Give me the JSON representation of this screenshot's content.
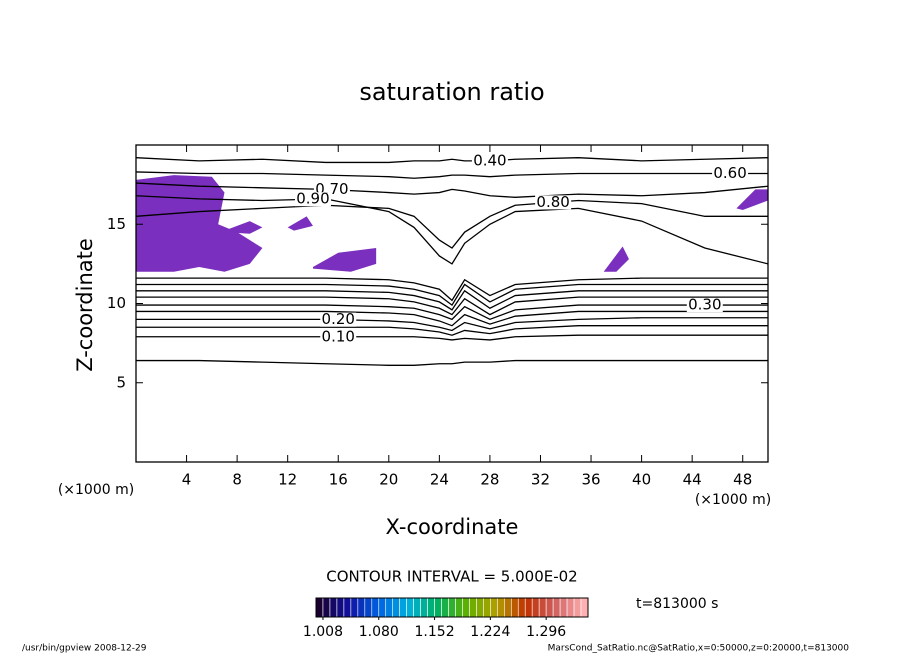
{
  "chart_data": {
    "type": "contour",
    "title": "saturation ratio",
    "x_label": "X-coordinate",
    "y_label": "Z-coordinate",
    "x_unit": "(×1000 m)",
    "y_unit": "(×1000 m)",
    "xlim": [
      0,
      50
    ],
    "ylim": [
      0,
      20
    ],
    "xticks": [
      4,
      8,
      12,
      16,
      20,
      24,
      28,
      32,
      36,
      40,
      44,
      48
    ],
    "yticks": [
      5,
      10,
      15
    ],
    "contour_interval_text": "CONTOUR INTERVAL = 5.000E-02",
    "time_text": "t=813000 s",
    "contour_x": [
      0,
      5,
      10,
      15,
      20,
      22,
      24,
      25,
      26,
      28,
      30,
      35,
      40,
      45,
      50
    ],
    "contours": [
      {
        "level": 0.05,
        "z": [
          6.4,
          6.4,
          6.3,
          6.2,
          6.1,
          6.1,
          6.2,
          6.2,
          6.3,
          6.3,
          6.4,
          6.4,
          6.4,
          6.4,
          6.4
        ]
      },
      {
        "level": 0.1,
        "label": "0.10",
        "label_x": 16,
        "z": [
          7.9,
          7.9,
          7.9,
          7.9,
          7.9,
          7.9,
          7.8,
          7.7,
          7.8,
          7.7,
          7.9,
          8.0,
          8.0,
          8.0,
          8.0
        ]
      },
      {
        "level": 0.15,
        "z": [
          8.5,
          8.5,
          8.5,
          8.5,
          8.5,
          8.4,
          8.2,
          8.0,
          8.3,
          8.1,
          8.4,
          8.6,
          8.6,
          8.6,
          8.6
        ]
      },
      {
        "level": 0.2,
        "label": "0.20",
        "label_x": 16,
        "z": [
          9.0,
          9.0,
          9.0,
          9.0,
          8.9,
          8.8,
          8.5,
          8.3,
          8.8,
          8.4,
          8.8,
          9.0,
          9.1,
          9.1,
          9.1
        ]
      },
      {
        "level": 0.25,
        "z": [
          9.5,
          9.5,
          9.5,
          9.5,
          9.4,
          9.3,
          8.9,
          8.6,
          9.3,
          8.7,
          9.2,
          9.5,
          9.5,
          9.5,
          9.5
        ]
      },
      {
        "level": 0.3,
        "label": "0.30",
        "label_x": 45,
        "z": [
          9.9,
          9.9,
          9.9,
          9.9,
          9.8,
          9.7,
          9.3,
          9.0,
          9.8,
          9.0,
          9.6,
          9.9,
          9.9,
          9.9,
          9.9
        ]
      },
      {
        "level": 0.35,
        "z": [
          10.4,
          10.4,
          10.4,
          10.4,
          10.3,
          10.1,
          9.7,
          9.3,
          10.3,
          9.3,
          10.1,
          10.4,
          10.4,
          10.4,
          10.4
        ]
      },
      {
        "level": 0.4,
        "z": [
          10.8,
          10.8,
          10.8,
          10.8,
          10.7,
          10.5,
          10.1,
          9.6,
          10.8,
          9.7,
          10.5,
          10.8,
          10.8,
          10.8,
          10.8
        ]
      },
      {
        "level": 0.45,
        "z": [
          11.2,
          11.2,
          11.2,
          11.2,
          11.1,
          10.9,
          10.5,
          9.9,
          11.2,
          10.1,
          10.9,
          11.2,
          11.2,
          11.2,
          11.2
        ]
      },
      {
        "level": 0.5,
        "z": [
          11.6,
          11.6,
          11.6,
          11.6,
          11.5,
          11.3,
          10.9,
          10.2,
          11.5,
          10.5,
          11.2,
          11.5,
          11.6,
          11.6,
          11.6
        ]
      },
      {
        "level": 0.4,
        "label": "0.40",
        "label_x": 28,
        "z": [
          19.2,
          19.0,
          19.1,
          18.9,
          18.9,
          19.0,
          19.0,
          19.1,
          19.0,
          19.0,
          19.1,
          19.2,
          19.0,
          19.1,
          19.2
        ]
      },
      {
        "level": 0.6,
        "label": "0.60",
        "label_x": 47,
        "z": [
          18.3,
          18.2,
          18.2,
          18.1,
          18.0,
          17.9,
          18.0,
          18.1,
          18.1,
          18.0,
          18.1,
          18.2,
          18.2,
          18.2,
          18.2
        ]
      },
      {
        "level": 0.7,
        "label": "0.70",
        "label_x": 15.5,
        "z": [
          17.6,
          17.4,
          17.3,
          17.2,
          17.0,
          16.9,
          17.0,
          17.2,
          17.1,
          16.8,
          16.7,
          16.9,
          16.8,
          17.0,
          17.4
        ]
      },
      {
        "level": 0.8,
        "label": "0.80",
        "label_x": 33,
        "z": [
          15.5,
          15.8,
          16.0,
          16.2,
          16.0,
          15.5,
          14.0,
          13.5,
          14.5,
          15.5,
          16.2,
          16.5,
          16.3,
          15.5,
          15.5
        ]
      },
      {
        "level": 0.9,
        "label": "0.90",
        "label_x": 14,
        "z": [
          16.8,
          16.6,
          16.5,
          16.6,
          15.8,
          14.8,
          13.0,
          12.5,
          13.8,
          15.0,
          15.8,
          16.0,
          15.2,
          13.5,
          12.5
        ]
      }
    ],
    "fill_color": "#7b2fbe",
    "fill_regions": [
      {
        "x": [
          0,
          3,
          6,
          7,
          6.5,
          8,
          10,
          9,
          7,
          5,
          3,
          0
        ],
        "z": [
          17.8,
          18.1,
          18.0,
          17,
          15,
          14.5,
          13.5,
          12.5,
          12.0,
          12.3,
          12.0,
          12.0
        ]
      },
      {
        "x": [
          14,
          16,
          19,
          19,
          17,
          14
        ],
        "z": [
          12.3,
          13.2,
          13.5,
          12.5,
          12.0,
          12.2
        ]
      },
      {
        "x": [
          7,
          9,
          10,
          9,
          7
        ],
        "z": [
          14.6,
          15.2,
          14.8,
          14.4,
          14.5
        ]
      },
      {
        "x": [
          12,
          13.5,
          14,
          12.5
        ],
        "z": [
          14.8,
          15.5,
          14.9,
          14.6
        ]
      },
      {
        "x": [
          37,
          38.5,
          39,
          38,
          37
        ],
        "z": [
          12.0,
          13.6,
          12.8,
          12.0,
          12.0
        ]
      },
      {
        "x": [
          47.5,
          49,
          50,
          50,
          48
        ],
        "z": [
          16.0,
          17.2,
          17.2,
          16.5,
          15.9
        ]
      }
    ],
    "colormap": [
      "#1a0030",
      "#1010a0",
      "#0060e0",
      "#00b0e0",
      "#00b060",
      "#60b000",
      "#b0a000",
      "#c03000",
      "#d06060",
      "#ffb0b0"
    ],
    "clim": [
      0.999,
      1.35
    ],
    "cticks": [
      1.008,
      {
        "value": 1.08,
        "label": "1.080"
      },
      1.152,
      1.224,
      1.296
    ],
    "footer_left": "/usr/bin/gpview   2008-12-29",
    "footer_right": "MarsCond_SatRatio.nc@SatRatio,x=0:50000,z=0:20000,t=813000"
  }
}
